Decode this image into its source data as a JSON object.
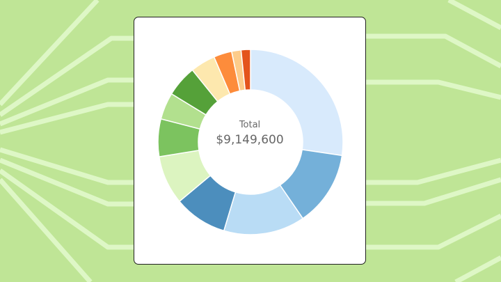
{
  "chart_data": {
    "type": "pie",
    "variant": "donut",
    "center_label": "Total",
    "center_value": "$9,149,600",
    "slices": [
      {
        "value": 2500000,
        "color": "#d8eafc"
      },
      {
        "value": 1200000,
        "color": "#74b0d9"
      },
      {
        "value": 1300000,
        "color": "#b9dcf5"
      },
      {
        "value": 850000,
        "color": "#4c8ebd"
      },
      {
        "value": 780000,
        "color": "#dcf4c0"
      },
      {
        "value": 600000,
        "color": "#7cc35f"
      },
      {
        "value": 430000,
        "color": "#b2e08e"
      },
      {
        "value": 500000,
        "color": "#55a139"
      },
      {
        "value": 400000,
        "color": "#fde8ae"
      },
      {
        "value": 290000,
        "color": "#fd8c3b"
      },
      {
        "value": 150000,
        "color": "#fdcc8a"
      },
      {
        "value": 149600,
        "color": "#e4541c"
      }
    ]
  },
  "colors": {
    "background": "#bfe596",
    "background_lines": "#def7c6",
    "card": "#ffffff"
  }
}
